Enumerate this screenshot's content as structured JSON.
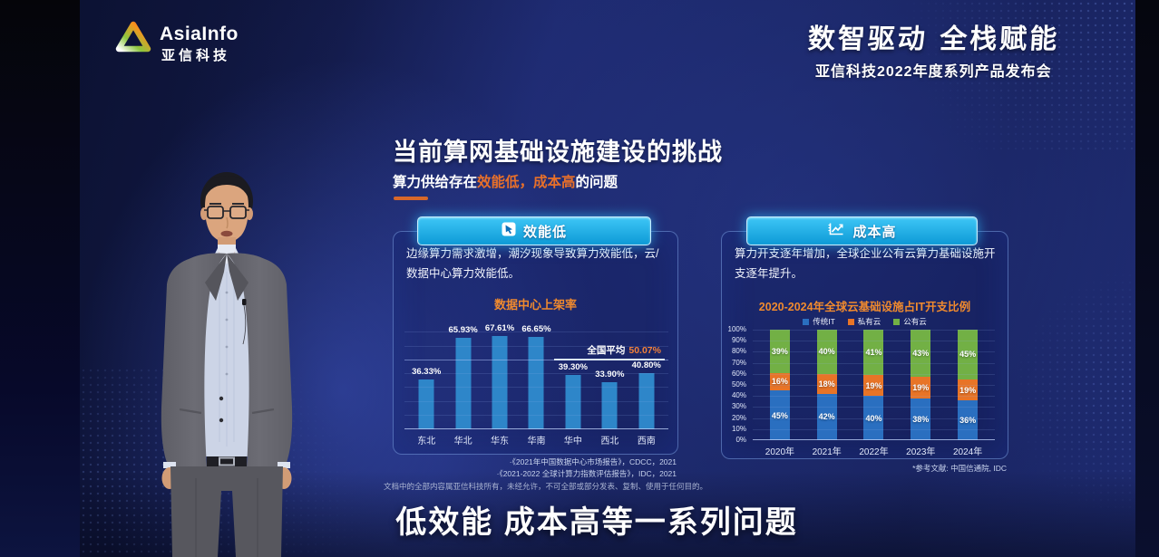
{
  "header": {
    "brand": "AsiaInfo",
    "brand_cn": "亚信科技",
    "slogan": "数智驱动 全栈赋能",
    "event": "亚信科技2022年度系列产品发布会"
  },
  "slide": {
    "title": "当前算网基础设施建设的挑战",
    "subtitle": {
      "pre": "算力供给存在",
      "hl1": "效能低，",
      "hl2": "成本高",
      "post": "的问题"
    },
    "left_panel": {
      "badge": "效能低",
      "desc": "边缘算力需求激增，潮汐现象导致算力效能低，云/数据中心算力效能低。",
      "footnote1": "·《2021年中国数据中心市场报告》，CDCC，2021",
      "footnote2": "·《2021-2022 全球计算力指数评估报告》，IDC，2021"
    },
    "right_panel": {
      "badge": "成本高",
      "desc": "算力开支逐年增加，全球企业公有云算力基础设施开支逐年提升。",
      "footnote": "*参考文献: 中国信通院, IDC"
    },
    "copyright": "文档中的全部内容属亚信科技所有，未经允许，不可全部或部分发表、复制、使用于任何目的。"
  },
  "caption": "低效能 成本高等一系列问题",
  "colors": {
    "accent_orange": "#e8702a",
    "badge_blue": "#18aae8",
    "bar_blue": "#2e86c9",
    "traditional_it_blue": "#2a6fc0",
    "private_cloud_orange": "#e87427",
    "public_cloud_green": "#72b045"
  },
  "chart_data": [
    {
      "type": "bar",
      "title": "数据中心上架率",
      "categories": [
        "东北",
        "华北",
        "华东",
        "华南",
        "华中",
        "西北",
        "西南"
      ],
      "values": [
        36.33,
        65.93,
        67.61,
        66.65,
        39.3,
        33.9,
        40.8
      ],
      "value_labels": [
        "36.33%",
        "65.93%",
        "67.61%",
        "66.65%",
        "39.30%",
        "33.90%",
        "40.80%"
      ],
      "average": {
        "label": "全国平均",
        "value": 50.07,
        "value_label": "50.07%"
      },
      "ylim": [
        0,
        80
      ],
      "grid": true,
      "legend_position": "none",
      "bar_color": "#2e86c9"
    },
    {
      "type": "stacked-bar",
      "title": "2020-2024年全球云基础设施占IT开支比例",
      "categories": [
        "2020年",
        "2021年",
        "2022年",
        "2023年",
        "2024年"
      ],
      "series": [
        {
          "name": "传统IT",
          "color": "#2a6fc0",
          "values": [
            45,
            42,
            40,
            38,
            36
          ]
        },
        {
          "name": "私有云",
          "color": "#e87427",
          "values": [
            16,
            18,
            19,
            19,
            19
          ]
        },
        {
          "name": "公有云",
          "color": "#72b045",
          "values": [
            39,
            40,
            41,
            43,
            45
          ]
        }
      ],
      "ylim": [
        0,
        100
      ],
      "ytick_step": 10,
      "grid": true,
      "legend_position": "top"
    }
  ]
}
